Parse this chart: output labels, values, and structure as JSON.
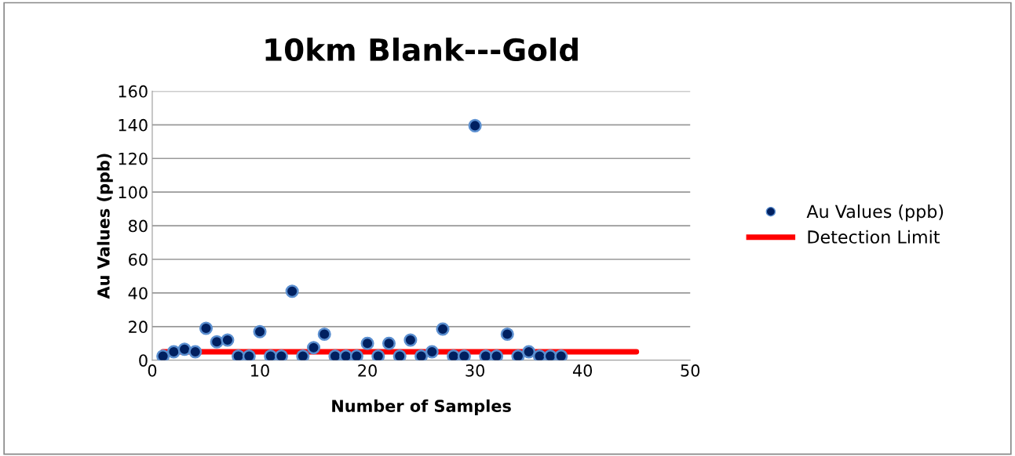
{
  "chart_data": {
    "type": "scatter",
    "title": "10km Blank---Gold",
    "xlabel": "Number of Samples",
    "ylabel": "Au Values (ppb)",
    "xlim": [
      0,
      50
    ],
    "xticks": [
      0,
      10,
      20,
      30,
      40,
      50
    ],
    "ylim": [
      0,
      160
    ],
    "yticks": [
      0,
      20,
      40,
      60,
      80,
      100,
      120,
      140,
      160
    ],
    "grid": "y",
    "legend": "right",
    "series": [
      {
        "name": "Au Values (ppb)",
        "marker": "circle",
        "color": "#002060",
        "x": [
          1,
          2,
          3,
          4,
          5,
          6,
          7,
          8,
          9,
          10,
          11,
          12,
          13,
          14,
          15,
          16,
          17,
          18,
          19,
          20,
          21,
          22,
          23,
          24,
          25,
          26,
          27,
          28,
          29,
          30,
          31,
          32,
          33,
          34,
          35,
          36,
          37,
          38
        ],
        "values": [
          2.5,
          5,
          6.5,
          5,
          19,
          11,
          12,
          2.5,
          2.5,
          17,
          2.5,
          2.5,
          41,
          2.5,
          7.5,
          15.5,
          2.5,
          2.5,
          2.5,
          10,
          2.5,
          10,
          2.5,
          12,
          2.5,
          5,
          18.5,
          2.5,
          2.5,
          139.5,
          2.5,
          2.5,
          15.5,
          2.5,
          5,
          2.5,
          2.5,
          2.5
        ]
      },
      {
        "name": "Detection Limit",
        "type": "line",
        "marker": "none",
        "color": "#ff0000",
        "x": [
          1,
          45
        ],
        "values": [
          5,
          5
        ]
      }
    ]
  }
}
